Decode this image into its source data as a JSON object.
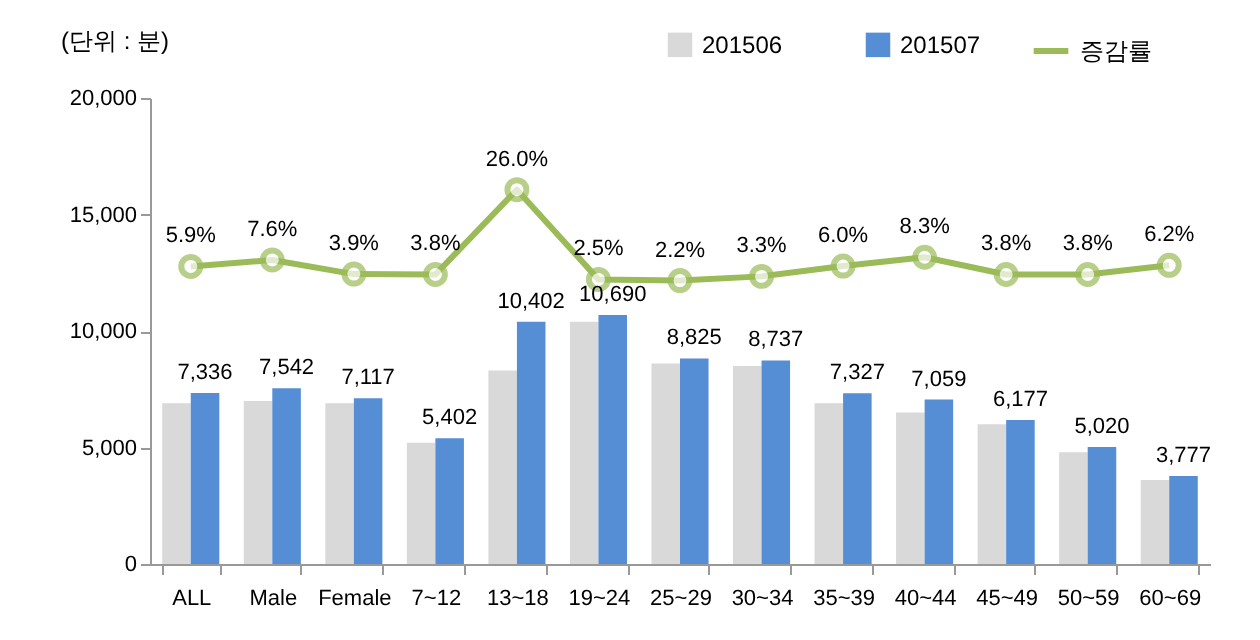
{
  "chart_data": {
    "type": "bar",
    "ylabel": "(단위 : 분)",
    "categories": [
      "ALL",
      "Male",
      "Female",
      "7~12",
      "13~18",
      "19~24",
      "25~29",
      "30~34",
      "35~39",
      "40~44",
      "45~49",
      "50~59",
      "60~69"
    ],
    "series": [
      {
        "name": "201506",
        "type": "bar",
        "color": "#d9d9d9",
        "values": [
          6900,
          7000,
          6900,
          5200,
          8300,
          10400,
          8600,
          8500,
          6900,
          6500,
          6000,
          4800,
          3600
        ]
      },
      {
        "name": "201507",
        "type": "bar",
        "color": "#558ed5",
        "values": [
          7336,
          7542,
          7117,
          5402,
          10402,
          10690,
          8825,
          8737,
          7327,
          7059,
          6177,
          5020,
          3777
        ],
        "value_labels": [
          "7,336",
          "7,542",
          "7,117",
          "5,402",
          "10,402",
          "10,690",
          "8,825",
          "8,737",
          "7,327",
          "7,059",
          "6,177",
          "5,020",
          "3,777"
        ]
      },
      {
        "name": "증감률",
        "type": "line",
        "axis": "y2",
        "color": "#9bbb59",
        "values": [
          5.9,
          7.6,
          3.9,
          3.8,
          26.0,
          2.5,
          2.2,
          3.3,
          6.0,
          8.3,
          3.8,
          3.8,
          6.2
        ],
        "value_labels": [
          "5.9%",
          "7.6%",
          "3.9%",
          "3.8%",
          "26.0%",
          "2.5%",
          "2.2%",
          "3.3%",
          "6.0%",
          "8.3%",
          "3.8%",
          "3.8%",
          "6.2%"
        ]
      }
    ],
    "ylim": [
      0,
      20000
    ],
    "yticks": [
      0,
      {
        "value": 5000,
        "label": "5,000"
      },
      {
        "value": 10000,
        "label": "10,000"
      },
      {
        "value": 15000,
        "label": "15,000"
      },
      {
        "value": 20000,
        "label": "20,000"
      }
    ],
    "y2lim": [
      -72,
      50
    ],
    "grid": false,
    "legend": "top right",
    "marker": "circle",
    "line_style": "solid"
  }
}
